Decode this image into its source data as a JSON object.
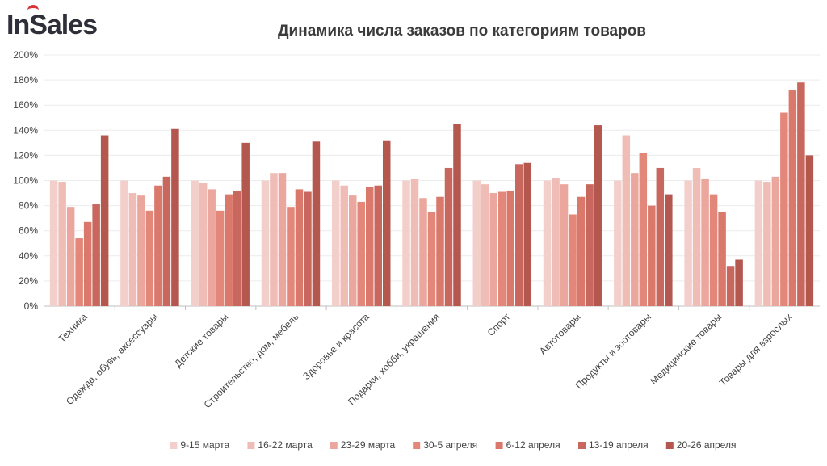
{
  "header": {
    "logo_text": "InSales"
  },
  "chart_data": {
    "type": "bar",
    "title": "Динамика числа заказов по категориям товаров",
    "xlabel": "",
    "ylabel": "",
    "ylim": [
      0,
      200
    ],
    "yticks": [
      "0%",
      "20%",
      "40%",
      "60%",
      "80%",
      "100%",
      "120%",
      "140%",
      "160%",
      "180%",
      "200%"
    ],
    "grid": true,
    "legend_position": "bottom",
    "categories": [
      "Техника",
      "Одежда, обувь, аксессуары",
      "Детские товары",
      "Строительство, дом, мебель",
      "Здоровье и красота",
      "Подарки, хобби, украшения",
      "Спорт",
      "Автотовары",
      "Продукты и зоотовары",
      "Медицинские товары",
      "Товары для взрослых"
    ],
    "series": [
      {
        "name": "9-15 марта",
        "color": "#f3cfcb",
        "values": [
          100,
          100,
          100,
          100,
          100,
          100,
          100,
          100,
          100,
          100,
          100
        ]
      },
      {
        "name": "16-22 марта",
        "color": "#efbdb6",
        "values": [
          99,
          90,
          98,
          106,
          96,
          101,
          97,
          102,
          136,
          110,
          99
        ]
      },
      {
        "name": "23-29 марта",
        "color": "#eba69d",
        "values": [
          79,
          88,
          93,
          106,
          88,
          86,
          90,
          97,
          106,
          101,
          103
        ]
      },
      {
        "name": "30-5 апреля",
        "color": "#e3877a",
        "values": [
          54,
          76,
          76,
          79,
          83,
          75,
          91,
          73,
          122,
          89,
          154
        ]
      },
      {
        "name": "6-12 апреля",
        "color": "#d9786b",
        "values": [
          67,
          96,
          89,
          93,
          95,
          87,
          92,
          87,
          80,
          75,
          172
        ]
      },
      {
        "name": "13-19 апреля",
        "color": "#c8675d",
        "values": [
          81,
          103,
          92,
          91,
          96,
          110,
          113,
          97,
          110,
          32,
          178
        ]
      },
      {
        "name": "20-26 апреля",
        "color": "#b4574f",
        "values": [
          136,
          141,
          130,
          131,
          132,
          145,
          114,
          144,
          89,
          37,
          120
        ]
      }
    ]
  }
}
